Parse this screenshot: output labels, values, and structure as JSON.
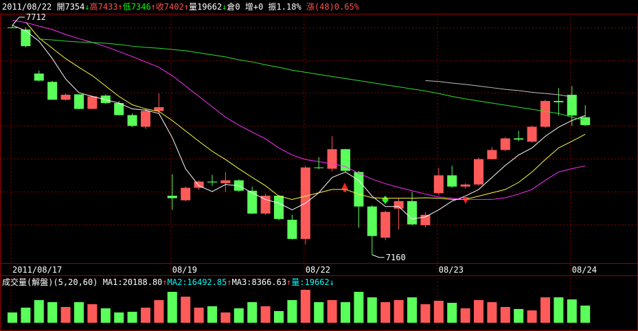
{
  "header": {
    "items": [
      {
        "text": "2011/08/22 ",
        "color": "#ffffff"
      },
      {
        "text": "開7354",
        "color": "#ffffff"
      },
      {
        "text": "↓",
        "color": "#00ff00"
      },
      {
        "text": "高7433",
        "color": "#ff5050"
      },
      {
        "text": "↑",
        "color": "#ff5050"
      },
      {
        "text": "低7346",
        "color": "#00ff00"
      },
      {
        "text": "↑",
        "color": "#ff5050"
      },
      {
        "text": "收7402",
        "color": "#ff5050"
      },
      {
        "text": "↑",
        "color": "#ff5050"
      },
      {
        "text": "量19662",
        "color": "#ffffff"
      },
      {
        "text": "↓",
        "color": "#00ff00"
      },
      {
        "text": "倉0 ",
        "color": "#ffffff"
      },
      {
        "text": "增+0 ",
        "color": "#ffffff"
      },
      {
        "text": "振1.18% ",
        "color": "#ffffff"
      },
      {
        "text": "漲(48)0.65%",
        "color": "#ff5050"
      }
    ]
  },
  "volume_header": {
    "items": [
      {
        "text": "成交量(解盤)(5,20,60) ",
        "color": "#ffffff"
      },
      {
        "text": "MA1:20188.80",
        "color": "#ffffff"
      },
      {
        "text": "↑",
        "color": "#ff5050"
      },
      {
        "text": "MA2:16492.85",
        "color": "#00ffff"
      },
      {
        "text": "↑",
        "color": "#ff5050"
      },
      {
        "text": "MA3:8366.63",
        "color": "#ffffff"
      },
      {
        "text": "↑",
        "color": "#ff5050"
      },
      {
        "text": "量:19662",
        "color": "#00ffff"
      },
      {
        "text": "↓",
        "color": "#00ffff"
      }
    ]
  },
  "chart_data": {
    "type": "candlestick",
    "up_color": "#ff5a5a",
    "down_color": "#5aff5a",
    "ylim": [
      7140,
      7740
    ],
    "vol_ylim": [
      0,
      33000
    ],
    "categories": [
      "2011/08/17",
      null,
      null,
      null,
      null,
      null,
      null,
      null,
      null,
      null,
      null,
      null,
      "08/19",
      null,
      null,
      null,
      null,
      null,
      null,
      null,
      null,
      null,
      "08/22",
      null,
      null,
      null,
      null,
      null,
      null,
      null,
      null,
      null,
      "08/23",
      null,
      null,
      null,
      null,
      null,
      null,
      null,
      null,
      null,
      "08/24",
      null
    ],
    "open": [
      7707,
      7702,
      7596,
      7576,
      7533,
      7546,
      7511,
      7543,
      7525,
      7496,
      7468,
      7506,
      7302,
      7291,
      7321,
      7336,
      7332,
      7339,
      7314,
      7259,
      7302,
      7244,
      7198,
      7370,
      7367,
      7414,
      7359,
      7276,
      7201,
      7271,
      7289,
      7231,
      7308,
      7351,
      7324,
      7329,
      7390,
      7412,
      7440,
      7432,
      7468,
      7530,
      7545,
      7491
    ],
    "high": [
      7712,
      7707,
      7603,
      7578,
      7548,
      7546,
      7543,
      7546,
      7530,
      7500,
      7511,
      7548,
      7354,
      7324,
      7339,
      7352,
      7359,
      7341,
      7324,
      7307,
      7304,
      7256,
      7374,
      7395,
      7445,
      7415,
      7362,
      7279,
      7266,
      7296,
      7311,
      7263,
      7369,
      7374,
      7332,
      7394,
      7419,
      7443,
      7458,
      7470,
      7533,
      7561,
      7566,
      7520
    ],
    "low": [
      7705,
      7659,
      7578,
      7533,
      7531,
      7510,
      7510,
      7523,
      7495,
      7467,
      7463,
      7500,
      7268,
      7289,
      7316,
      7326,
      7311,
      7311,
      7258,
      7256,
      7243,
      7196,
      7185,
      7366,
      7361,
      7359,
      7225,
      7160,
      7195,
      7221,
      7231,
      7226,
      7304,
      7321,
      7319,
      7326,
      7389,
      7410,
      7433,
      7430,
      7465,
      7495,
      7470,
      7470
    ],
    "close": [
      7706,
      7662,
      7579,
      7533,
      7545,
      7511,
      7541,
      7525,
      7496,
      7470,
      7506,
      7515,
      7296,
      7321,
      7336,
      7334,
      7339,
      7314,
      7259,
      7302,
      7246,
      7198,
      7370,
      7369,
      7414,
      7362,
      7276,
      7205,
      7263,
      7289,
      7233,
      7256,
      7351,
      7324,
      7329,
      7390,
      7412,
      7440,
      7437,
      7468,
      7530,
      7527,
      7495,
      7472
    ],
    "volume": [
      9520,
      13970,
      20960,
      19050,
      14600,
      19050,
      17150,
      13340,
      9520,
      10160,
      13970,
      20960,
      28580,
      24130,
      13970,
      15240,
      9520,
      13340,
      19050,
      15240,
      10800,
      20960,
      30480,
      19050,
      20960,
      19050,
      28580,
      23500,
      19050,
      20960,
      23500,
      17150,
      20320,
      18420,
      13340,
      20960,
      19050,
      14600,
      12700,
      11430,
      23500,
      23500,
      21590,
      15880
    ],
    "series": [
      {
        "color": "#ffffff",
        "values": [
          7712,
          7699,
          7674,
          7632,
          7583,
          7550,
          7541,
          7533,
          7525,
          7511,
          7508,
          7500,
          7442,
          7367,
          7326,
          7312,
          7329,
          7326,
          7309,
          7293,
          7284,
          7268,
          7284,
          7309,
          7346,
          7359,
          7339,
          7301,
          7276,
          7276,
          7246,
          7251,
          7268,
          7289,
          7301,
          7317,
          7346,
          7375,
          7400,
          7417,
          7445,
          7467,
          7483,
          7495
        ]
      },
      {
        "color": "#ffff40",
        "values": [
          null,
          7720,
          7682,
          7657,
          7632,
          7611,
          7591,
          7566,
          7541,
          7521,
          7511,
          7505,
          7483,
          7458,
          7433,
          7409,
          7389,
          7367,
          7346,
          7326,
          7301,
          7293,
          7301,
          7309,
          7317,
          7317,
          7306,
          7297,
          7296,
          7296,
          7296,
          7297,
          7296,
          7293,
          7293,
          7301,
          7309,
          7317,
          7334,
          7359,
          7389,
          7417,
          7433,
          7450
        ]
      },
      {
        "color": "#ff30ff",
        "values": [
          7724,
          7719,
          7710,
          7702,
          7690,
          7680,
          7671,
          7661,
          7649,
          7637,
          7624,
          7611,
          7591,
          7566,
          7541,
          7516,
          7491,
          7472,
          7455,
          7439,
          7417,
          7400,
          7389,
          7384,
          7379,
          7372,
          7356,
          7342,
          7331,
          7322,
          7314,
          7306,
          7299,
          7296,
          7293,
          7293,
          7293,
          7297,
          7306,
          7317,
          7339,
          7359,
          7367,
          7374
        ]
      },
      {
        "color": "#30e030",
        "values": [
          null,
          null,
          7679,
          7677,
          7674,
          7672,
          7671,
          7669,
          7666,
          7662,
          7659,
          7657,
          7654,
          7651,
          7646,
          7641,
          7636,
          7629,
          7624,
          7617,
          7611,
          7604,
          7599,
          7594,
          7589,
          7584,
          7579,
          7574,
          7569,
          7564,
          7559,
          7554,
          7548,
          7541,
          7535,
          7530,
          7525,
          7520,
          7515,
          7510,
          7505,
          7500,
          7491,
          7483
        ]
      },
      {
        "color": "#c0c0c0",
        "values": [
          null,
          null,
          null,
          null,
          null,
          null,
          null,
          null,
          null,
          null,
          null,
          null,
          null,
          null,
          null,
          null,
          null,
          null,
          null,
          null,
          null,
          null,
          null,
          null,
          null,
          null,
          null,
          null,
          null,
          null,
          null,
          7579,
          7577,
          7573,
          7570,
          7566,
          7562,
          7558,
          7555,
          7551,
          7548,
          7545,
          7540,
          null
        ]
      }
    ],
    "annotations": [
      {
        "value": 7712,
        "at": 0
      },
      {
        "value": 7160,
        "at": 27
      }
    ]
  }
}
